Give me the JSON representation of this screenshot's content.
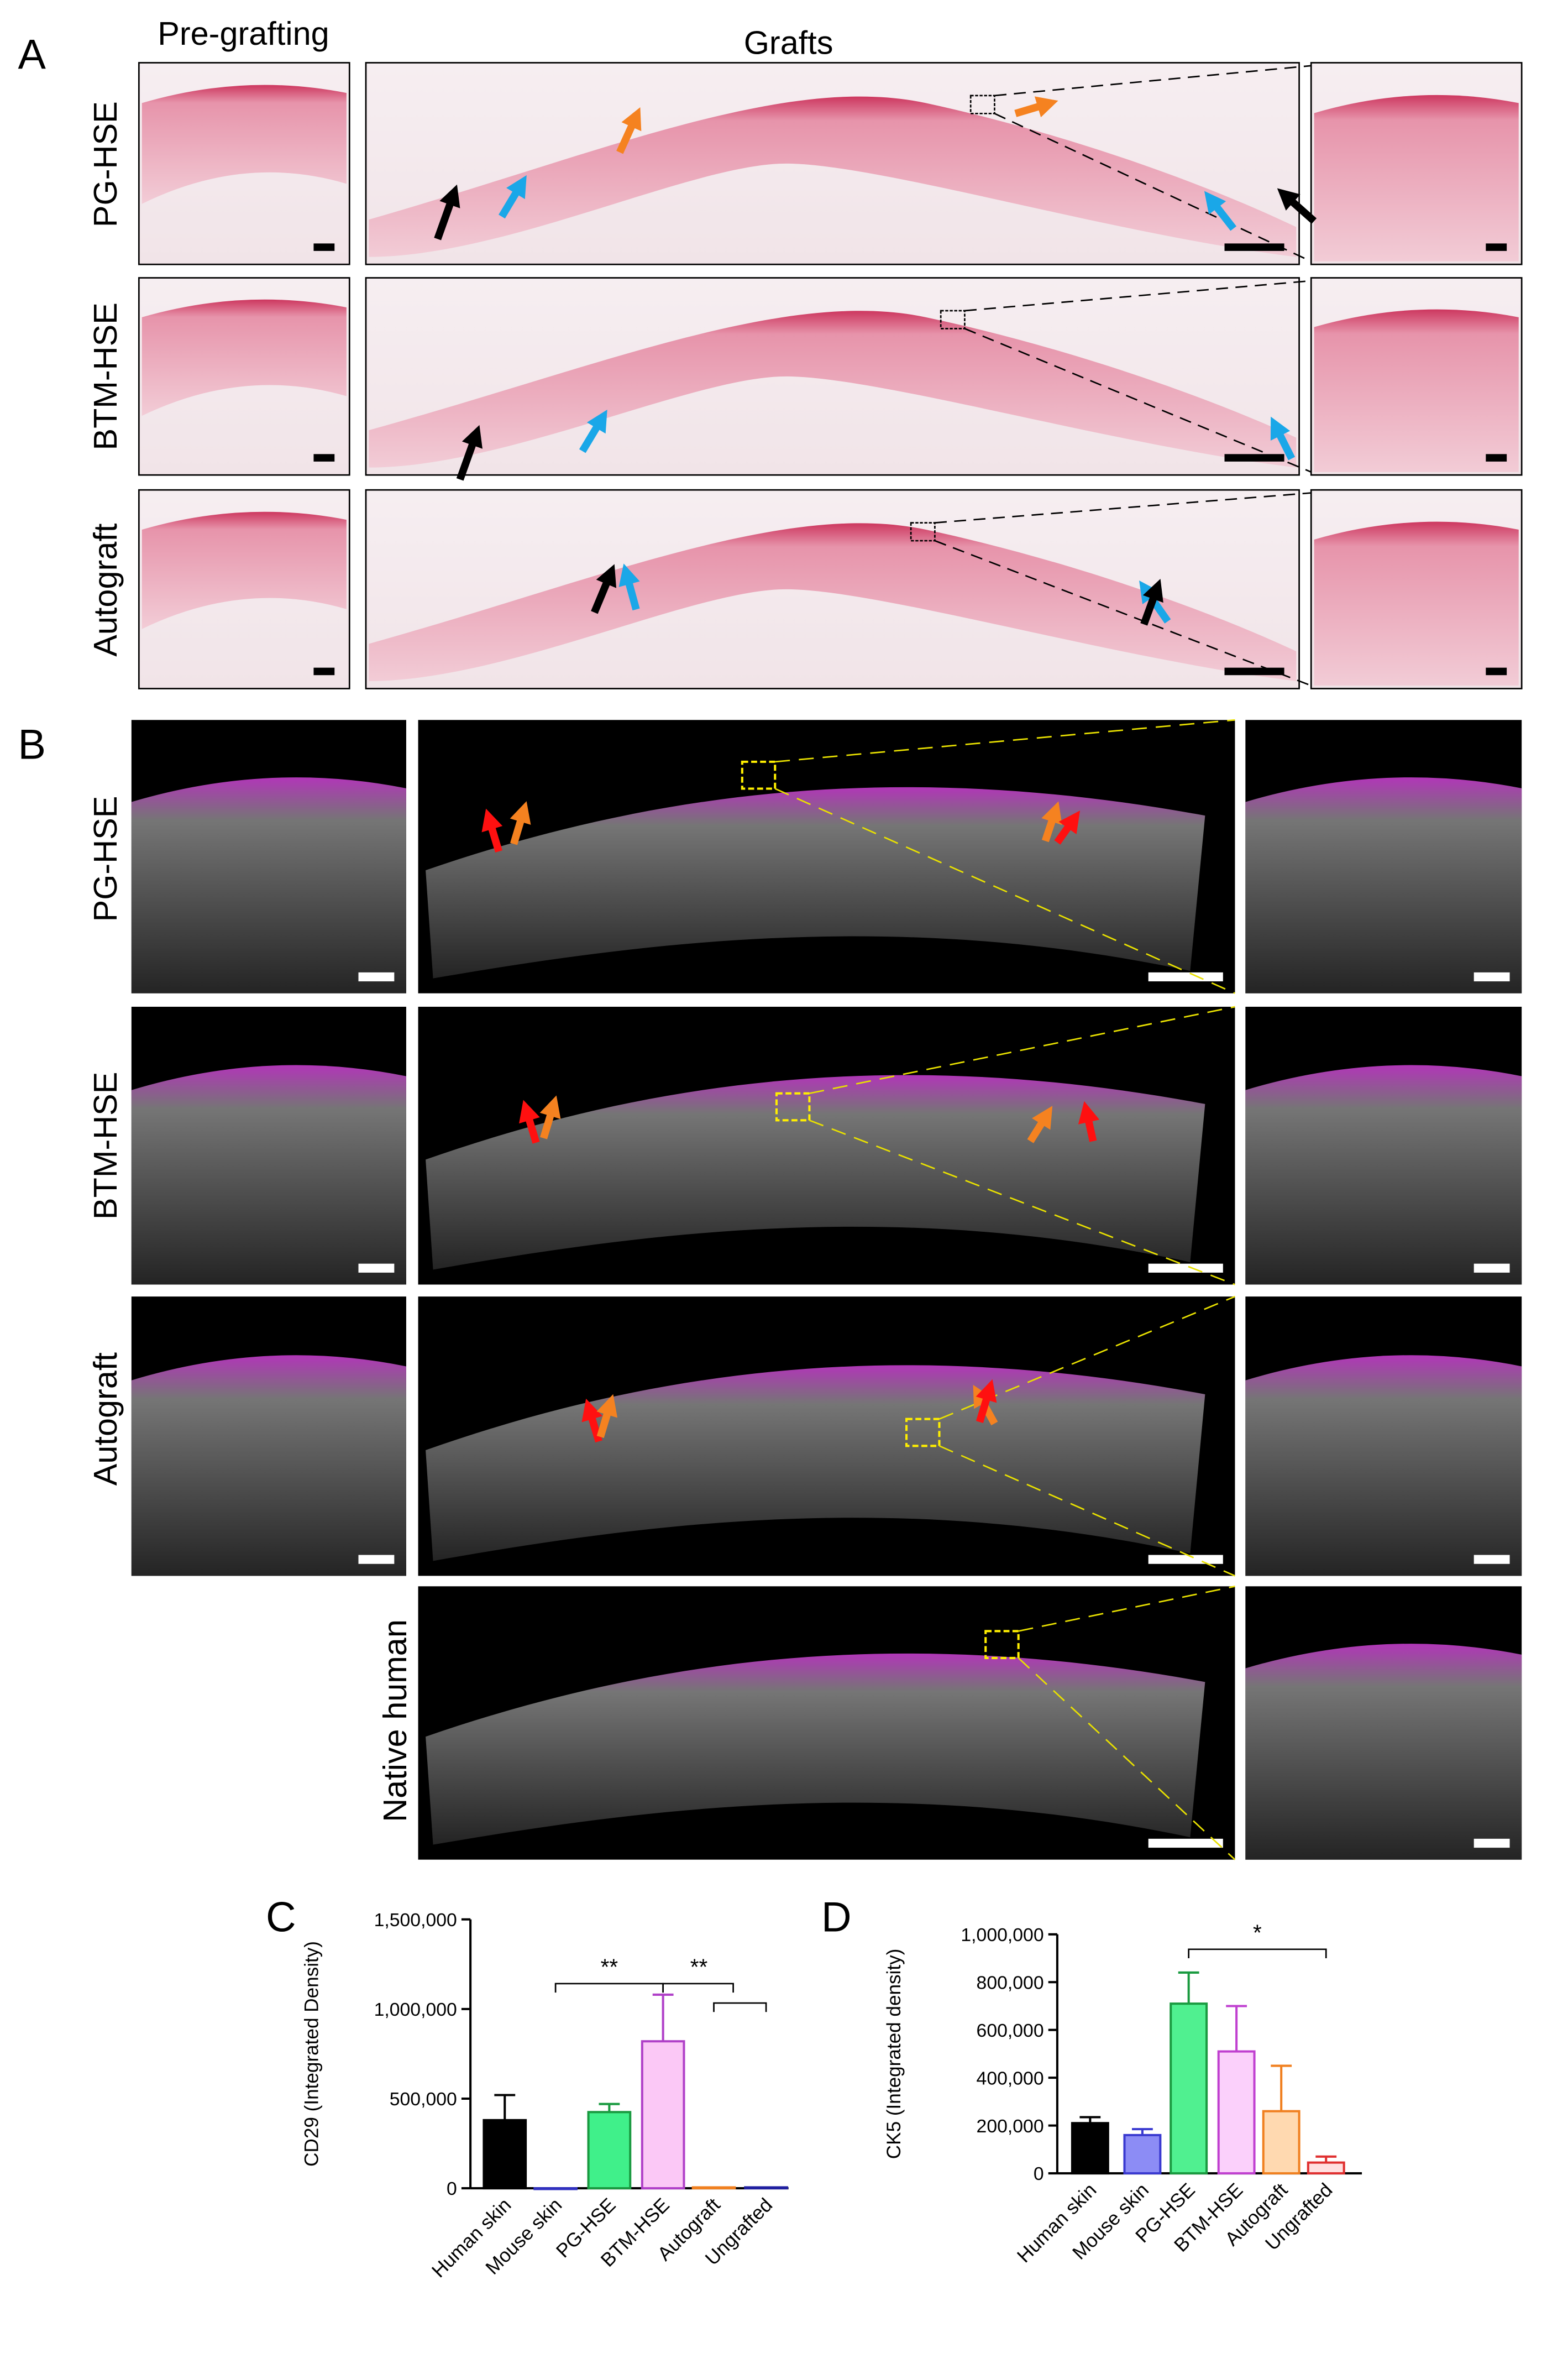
{
  "figure": {
    "panel_a": {
      "label": "A",
      "col_titles": [
        "Pre-grafting",
        "Grafts"
      ],
      "rows": [
        "PG-HSE",
        "BTM-HSE",
        "Autograft"
      ]
    },
    "panel_b": {
      "label": "B",
      "rows": [
        "PG-HSE",
        "BTM-HSE",
        "Autograft",
        "Native human"
      ]
    }
  },
  "chart_data": [
    {
      "type": "bar",
      "panel": "C",
      "y_label": "CD29 (Integrated Density)",
      "categories": [
        "Human skin",
        "Mouse skin",
        "PG-HSE",
        "BTM-HSE",
        "Autograft",
        "Ungrafted"
      ],
      "values": [
        380000,
        0,
        425000,
        820000,
        5000,
        5000
      ],
      "errors": [
        140000,
        0,
        45000,
        260000,
        0,
        0
      ],
      "colors": [
        "#000000",
        "#8c8cf5",
        "#40f08a",
        "#fbc8f6",
        "#f7a04a",
        "#3030c0"
      ],
      "edge_colors": [
        "#000000",
        "#3030c0",
        "#1a9a40",
        "#b040c8",
        "#f08020",
        "#2020a0"
      ],
      "ylim": [
        0,
        1500000
      ],
      "yticks": [
        0,
        {
          "value": 500000,
          "label": "500,000"
        },
        {
          "value": 1000000,
          "label": "1,000,000"
        },
        {
          "value": 1500000,
          "label": "1,500,000"
        }
      ],
      "annotations": [
        "**",
        "**"
      ]
    },
    {
      "type": "bar",
      "panel": "D",
      "y_label": "CK5 (Integrated density)",
      "categories": [
        "Human skin",
        "Mouse skin",
        "PG-HSE",
        "BTM-HSE",
        "Autograft",
        "Ungrafted"
      ],
      "values": [
        210000,
        160000,
        710000,
        510000,
        260000,
        45000
      ],
      "errors": [
        25000,
        25000,
        130000,
        190000,
        190000,
        25000
      ],
      "colors": [
        "#000000",
        "#8c8cf5",
        "#50f090",
        "#fbd0fb",
        "#ffd9b0",
        "#ffe0e0"
      ],
      "edge_colors": [
        "#000000",
        "#3a3ad0",
        "#1a9a40",
        "#c040d0",
        "#f08020",
        "#e03030"
      ],
      "ylim": [
        0,
        1000000
      ],
      "yticks": [
        0,
        {
          "value": 200000,
          "label": "200,000"
        },
        {
          "value": 400000,
          "label": "400,000"
        },
        {
          "value": 600000,
          "label": "600,000"
        },
        {
          "value": 800000,
          "label": "800,000"
        },
        {
          "value": 1000000,
          "label": "1,000,000"
        }
      ],
      "annotations": [
        "*"
      ]
    }
  ]
}
